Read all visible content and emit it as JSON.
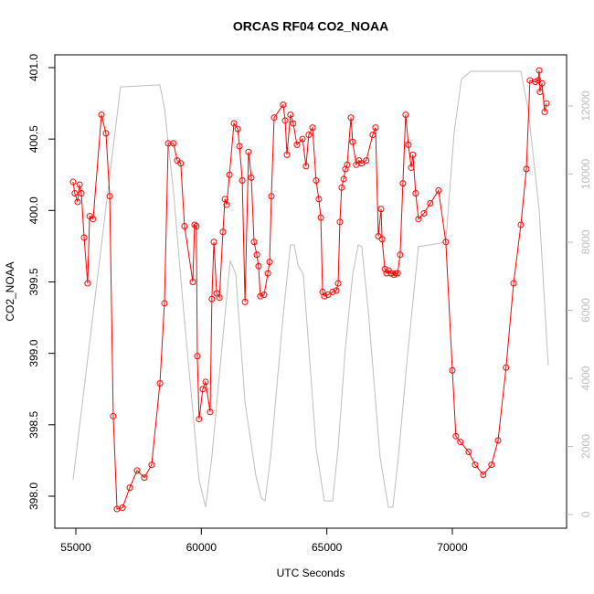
{
  "chart_data": {
    "type": "line",
    "title": "ORCAS RF04 CO2_NOAA",
    "xlabel": "UTC Seconds",
    "ylabel": "CO2_NOAA",
    "xlim": [
      54163,
      74551
    ],
    "ylim": [
      397.776,
      401.0895
    ],
    "y2lim": [
      -403,
      13503
    ],
    "xticks": [
      55000,
      60000,
      65000,
      70000
    ],
    "yticks": [
      {
        "value": 398,
        "label": "398.0"
      },
      {
        "value": 398.5,
        "label": "398.5"
      },
      {
        "value": 399,
        "label": "399.0"
      },
      {
        "value": 399.5,
        "label": "399.5"
      },
      {
        "value": 400,
        "label": "400.0"
      },
      {
        "value": 400.5,
        "label": "400.5"
      },
      {
        "value": 401,
        "label": "401.0"
      }
    ],
    "y2ticks": [
      0,
      2000,
      4000,
      6000,
      8000,
      10000,
      12000
    ],
    "series": [
      {
        "color": "#bebebe",
        "axis": "y2",
        "x": [
          54890,
          56780,
          58350,
          58530,
          58890,
          59260,
          59910,
          60170,
          60420,
          60820,
          61150,
          61370,
          61740,
          62170,
          62390,
          62540,
          62760,
          63260,
          63550,
          63700,
          63850,
          64060,
          64280,
          64570,
          64900,
          65230,
          65450,
          65740,
          66030,
          66250,
          66390,
          66650,
          67120,
          67450,
          67630,
          67850,
          68210,
          68650,
          69090,
          69740,
          70070,
          70360,
          70730,
          72730,
          73020,
          73460,
          73820
        ],
        "values": [
          1020,
          12560,
          12620,
          11950,
          9480,
          6260,
          1020,
          215,
          1690,
          4910,
          7460,
          7060,
          3300,
          1150,
          480,
          400,
          1690,
          5850,
          7920,
          7920,
          7330,
          7060,
          4910,
          1960,
          400,
          400,
          1960,
          4910,
          7060,
          7920,
          7870,
          5990,
          1690,
          215,
          215,
          1690,
          4640,
          7870,
          7920,
          8000,
          11220,
          12780,
          13020,
          13020,
          11890,
          8940,
          4380
        ]
      },
      {
        "color": "#ff0000",
        "marker": "circle",
        "x": [
          54890,
          54960,
          55070,
          55150,
          55220,
          55330,
          55470,
          55550,
          55690,
          56020,
          56200,
          56350,
          56490,
          56640,
          56860,
          57150,
          57440,
          57730,
          58020,
          58350,
          58530,
          58680,
          58890,
          59040,
          59180,
          59330,
          59660,
          59730,
          59800,
          59840,
          59910,
          60060,
          60170,
          60350,
          60420,
          60500,
          60610,
          60720,
          60860,
          60940,
          61010,
          61120,
          61300,
          61450,
          61520,
          61630,
          61740,
          61880,
          61990,
          62100,
          62210,
          62280,
          62350,
          62500,
          62650,
          62720,
          62790,
          62900,
          63260,
          63340,
          63410,
          63550,
          63660,
          63810,
          64030,
          64170,
          64280,
          64430,
          64570,
          64680,
          64760,
          64830,
          64900,
          65050,
          65230,
          65380,
          65450,
          65520,
          65590,
          65670,
          65740,
          65810,
          65960,
          66030,
          66170,
          66280,
          66390,
          66570,
          66830,
          66940,
          67050,
          67160,
          67200,
          67310,
          67380,
          67460,
          67560,
          67670,
          67740,
          67820,
          67920,
          68030,
          68140,
          68250,
          68360,
          68430,
          68540,
          68650,
          68870,
          69120,
          69450,
          69740,
          70000,
          70140,
          70320,
          70650,
          70910,
          71230,
          71560,
          71820,
          72140,
          72440,
          72730,
          72950,
          73090,
          73310,
          73420,
          73460,
          73490,
          73570,
          73680,
          73750
        ],
        "values": [
          400.2,
          400.12,
          400.06,
          400.18,
          400.12,
          399.81,
          399.49,
          399.96,
          399.94,
          400.67,
          400.54,
          400.1,
          398.56,
          397.91,
          397.92,
          398.06,
          398.18,
          398.13,
          398.22,
          398.79,
          399.35,
          400.47,
          400.47,
          400.35,
          400.33,
          399.89,
          399.5,
          399.9,
          399.89,
          398.98,
          398.54,
          398.75,
          398.8,
          398.59,
          399.38,
          399.78,
          399.42,
          399.39,
          399.85,
          400.08,
          400.04,
          400.25,
          400.61,
          400.57,
          400.45,
          400.21,
          399.36,
          400.41,
          400.23,
          399.78,
          399.69,
          399.61,
          399.4,
          399.41,
          399.56,
          399.64,
          400.1,
          400.65,
          400.74,
          400.63,
          400.39,
          400.67,
          400.61,
          400.46,
          400.5,
          400.31,
          400.53,
          400.58,
          400.21,
          400.08,
          399.95,
          399.43,
          399.4,
          399.41,
          399.43,
          399.44,
          399.49,
          399.92,
          400.16,
          400.22,
          400.29,
          400.32,
          400.65,
          400.48,
          400.32,
          400.35,
          400.33,
          400.35,
          400.53,
          400.58,
          399.82,
          400.01,
          399.8,
          399.59,
          399.56,
          399.58,
          399.56,
          399.55,
          399.56,
          399.56,
          399.69,
          400.19,
          400.67,
          400.46,
          400.3,
          400.39,
          400.12,
          399.94,
          399.98,
          400.05,
          400.14,
          399.78,
          398.88,
          398.42,
          398.38,
          398.31,
          398.22,
          398.15,
          398.22,
          398.39,
          398.9,
          399.49,
          399.9,
          400.29,
          400.91,
          400.9,
          400.91,
          400.98,
          400.83,
          400.89,
          400.69,
          400.75
        ]
      }
    ]
  }
}
